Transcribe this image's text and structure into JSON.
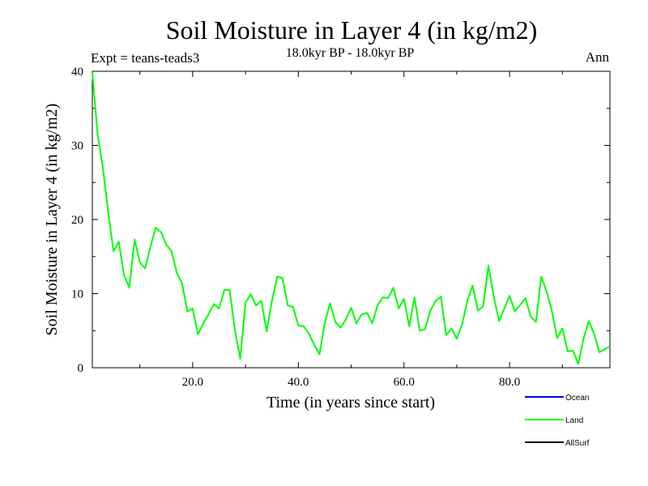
{
  "chart_data": {
    "type": "line",
    "title": "Soil Moisture in Layer 4 (in kg/m2)",
    "subtitle": "18.0kyr BP - 18.0kyr BP",
    "experiment_label": "Expt = teans-teads3",
    "season_label": "Ann",
    "xlabel": "Time (in years since start)",
    "ylabel": "Soil Moisture in Layer 4 (in kg/m2)",
    "xlim": [
      1,
      99
    ],
    "ylim": [
      0,
      40
    ],
    "x_ticks": [
      {
        "value": 20,
        "label": "20.0"
      },
      {
        "value": 40,
        "label": "40.0"
      },
      {
        "value": 60,
        "label": "60.0"
      },
      {
        "value": 80,
        "label": "80.0"
      }
    ],
    "y_ticks": [
      {
        "value": 0,
        "label": "0"
      },
      {
        "value": 10,
        "label": "10"
      },
      {
        "value": 20,
        "label": "20"
      },
      {
        "value": 30,
        "label": "30"
      },
      {
        "value": 40,
        "label": "40"
      }
    ],
    "legend": [
      {
        "name": "Ocean",
        "color": "#0000ff"
      },
      {
        "name": "Land",
        "color": "#00ff00"
      },
      {
        "name": "AllSurf",
        "color": "#000000"
      }
    ],
    "series": [
      {
        "name": "Land",
        "color": "#00ff00",
        "x": [
          1,
          2,
          3,
          4,
          5,
          6,
          7,
          8,
          9,
          10,
          11,
          12,
          13,
          14,
          15,
          16,
          17,
          18,
          19,
          20,
          21,
          22,
          23,
          24,
          25,
          26,
          27,
          28,
          29,
          30,
          31,
          32,
          33,
          34,
          35,
          36,
          37,
          38,
          39,
          40,
          41,
          42,
          43,
          44,
          45,
          46,
          47,
          48,
          49,
          50,
          51,
          52,
          53,
          54,
          55,
          56,
          57,
          58,
          59,
          60,
          61,
          62,
          63,
          64,
          65,
          66,
          67,
          68,
          69,
          70,
          71,
          72,
          73,
          74,
          75,
          76,
          77,
          78,
          79,
          80,
          81,
          82,
          83,
          84,
          85,
          86,
          87,
          88,
          89,
          90,
          91,
          92,
          93,
          94,
          95,
          96,
          97,
          98,
          99
        ],
        "values": [
          39.8,
          31.5,
          27.0,
          21.0,
          15.7,
          17.0,
          12.5,
          10.8,
          17.3,
          14.2,
          13.4,
          16.3,
          18.9,
          18.3,
          16.6,
          15.7,
          12.8,
          11.4,
          7.6,
          8.0,
          4.5,
          6.0,
          7.2,
          8.6,
          8.0,
          10.5,
          10.5,
          5.0,
          1.2,
          8.8,
          9.9,
          8.4,
          9.0,
          4.9,
          9.0,
          12.3,
          12.1,
          8.4,
          8.2,
          5.7,
          5.6,
          4.6,
          3.1,
          1.8,
          6.0,
          8.7,
          6.2,
          5.4,
          6.5,
          8.1,
          6.0,
          7.2,
          7.4,
          6.0,
          8.4,
          9.5,
          9.4,
          10.8,
          8.0,
          9.3,
          5.6,
          9.5,
          5.0,
          5.2,
          7.7,
          9.0,
          9.6,
          4.4,
          5.3,
          3.9,
          5.8,
          9.0,
          11.1,
          7.7,
          8.3,
          13.8,
          9.6,
          6.3,
          8.0,
          9.7,
          7.6,
          8.5,
          9.4,
          6.9,
          6.2,
          12.3,
          10.3,
          7.7,
          4.0,
          5.3,
          2.2,
          2.3,
          0.5,
          3.9,
          6.3,
          4.6,
          2.1,
          2.5,
          2.9
        ]
      }
    ]
  }
}
